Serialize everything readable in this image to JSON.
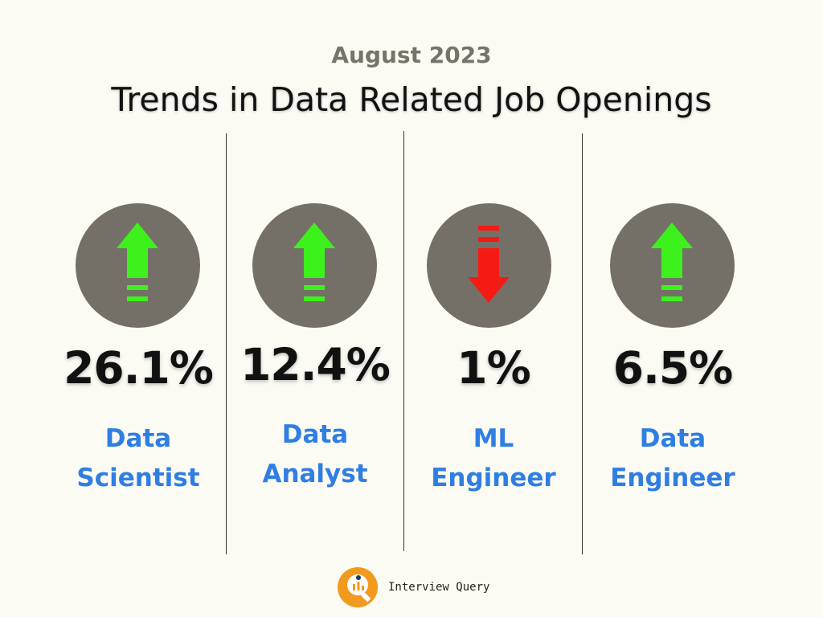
{
  "header": {
    "subtitle": "August 2023",
    "title": "Trends in Data Related Job Openings"
  },
  "cards": [
    {
      "percent": "26.1%",
      "role_line1": "Data",
      "role_line2": "Scientist",
      "trend": "up",
      "arrow_color": "#3df11c"
    },
    {
      "percent": "12.4%",
      "role_line1": "Data",
      "role_line2": "Analyst",
      "trend": "up",
      "arrow_color": "#3df11c"
    },
    {
      "percent": "1%",
      "role_line1": "ML",
      "role_line2": "Engineer",
      "trend": "down",
      "arrow_color": "#f51a14"
    },
    {
      "percent": "6.5%",
      "role_line1": "Data",
      "role_line2": "Engineer",
      "trend": "up",
      "arrow_color": "#3df11c"
    }
  ],
  "colors": {
    "background": "#fbfbf3",
    "circle": "#747068",
    "role_text": "#2f7ee3",
    "subtitle": "#75736a",
    "logo": "#f29a1e"
  },
  "footer": {
    "brand": "Interview Query",
    "logo_icon": "interview-query-logo-icon"
  }
}
